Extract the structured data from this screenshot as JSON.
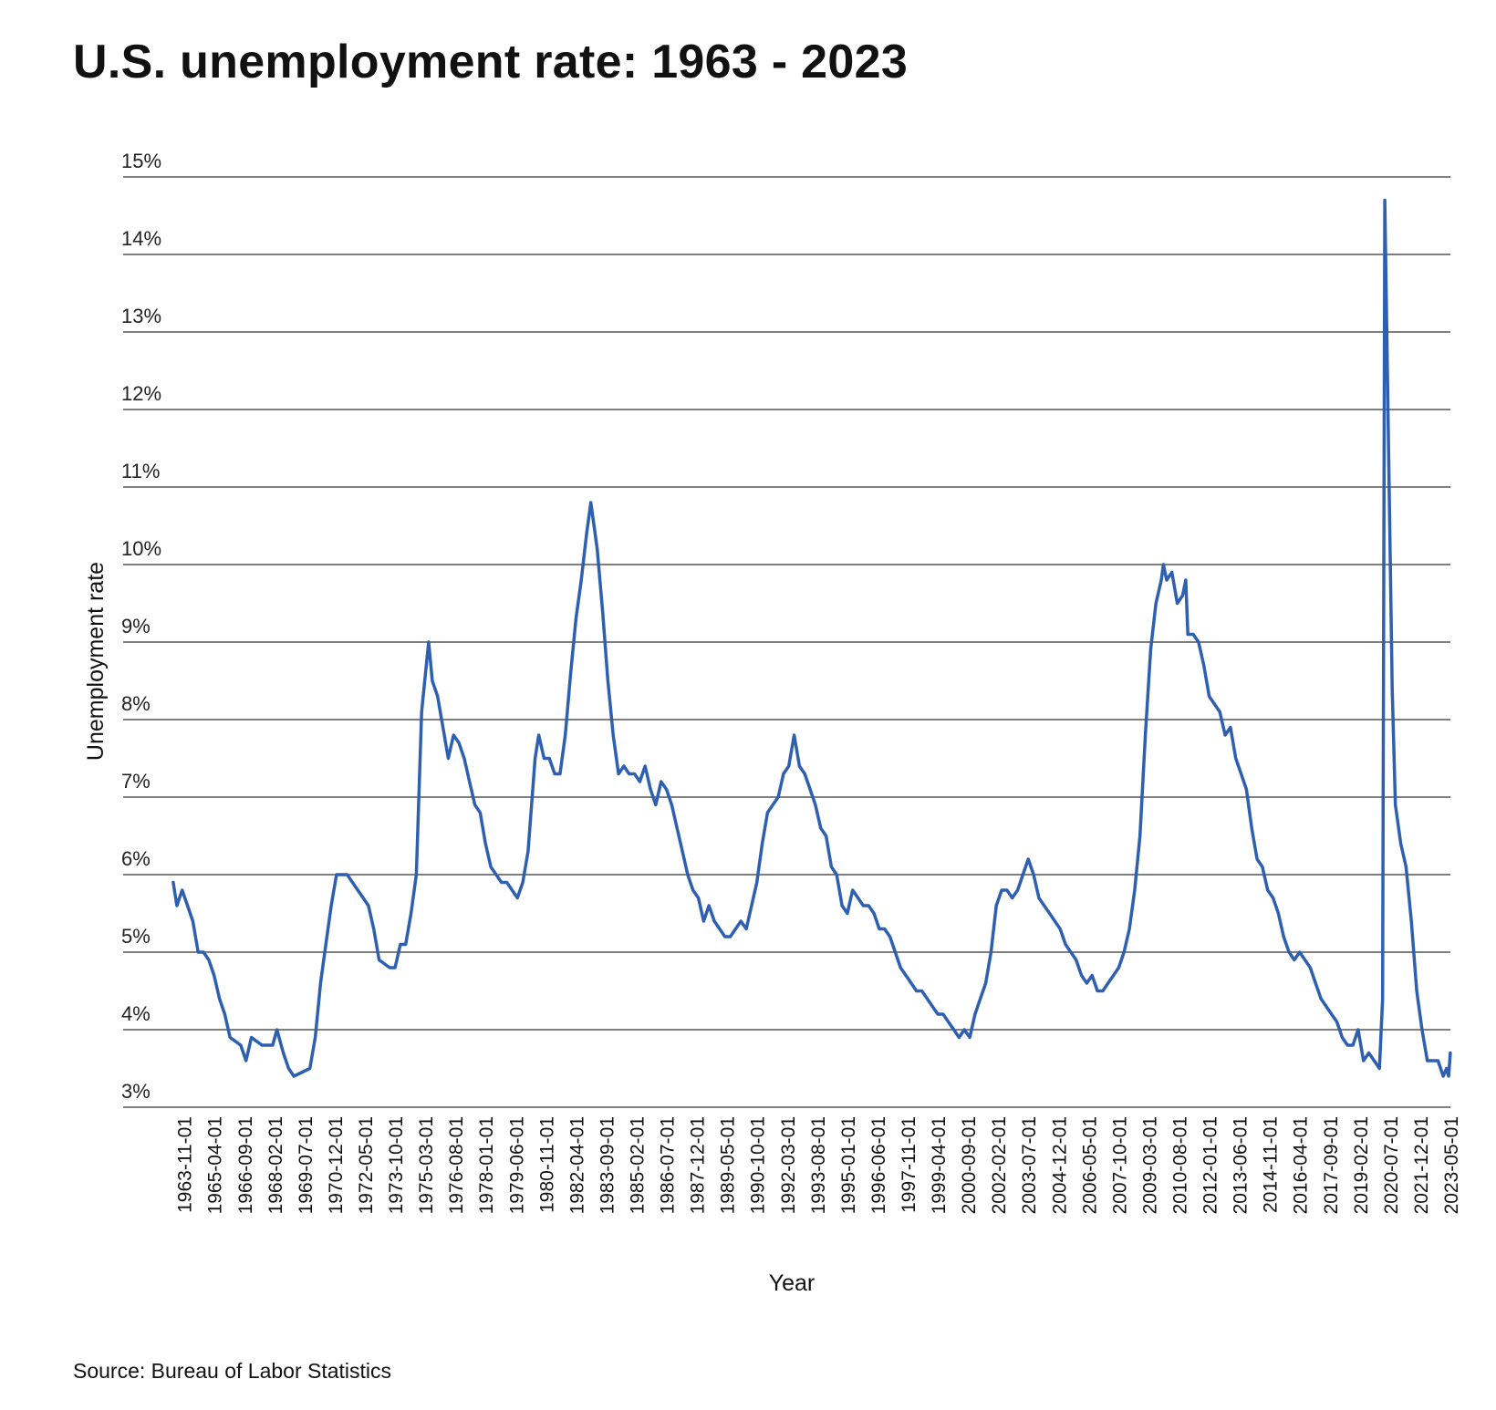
{
  "title": "U.S. unemployment rate: 1963 - 2023",
  "source": "Source: Bureau of Labor Statistics",
  "chart_data": {
    "type": "line",
    "title": "U.S. unemployment rate: 1963 - 2023",
    "xlabel": "Year",
    "ylabel": "Unemployment rate",
    "ylim": [
      3,
      15
    ],
    "xlim": [
      "1963-05-01",
      "2023-05-01"
    ],
    "grid": "horizontal",
    "line_color": "#2f5fb0",
    "y_ticks": [
      "3%",
      "4%",
      "5%",
      "6%",
      "7%",
      "8%",
      "9%",
      "10%",
      "11%",
      "12%",
      "13%",
      "14%",
      "15%"
    ],
    "x_ticks": [
      "1963-11-01",
      "1965-04-01",
      "1966-09-01",
      "1968-02-01",
      "1969-07-01",
      "1970-12-01",
      "1972-05-01",
      "1973-10-01",
      "1975-03-01",
      "1976-08-01",
      "1978-01-01",
      "1979-06-01",
      "1980-11-01",
      "1982-04-01",
      "1983-09-01",
      "1985-02-01",
      "1986-07-01",
      "1987-12-01",
      "1989-05-01",
      "1990-10-01",
      "1992-03-01",
      "1993-08-01",
      "1995-01-01",
      "1996-06-01",
      "1997-11-01",
      "1999-04-01",
      "2000-09-01",
      "2002-02-01",
      "2003-07-01",
      "2004-12-01",
      "2006-05-01",
      "2007-10-01",
      "2009-03-01",
      "2010-08-01",
      "2012-01-01",
      "2013-06-01",
      "2014-11-01",
      "2016-04-01",
      "2017-09-01",
      "2019-02-01",
      "2020-07-01",
      "2021-12-01",
      "2023-05-01"
    ],
    "series": [
      {
        "name": "Unemployment rate",
        "points": [
          [
            1963.33,
            5.9
          ],
          [
            1963.5,
            5.6
          ],
          [
            1963.75,
            5.8
          ],
          [
            1964.0,
            5.6
          ],
          [
            1964.25,
            5.4
          ],
          [
            1964.5,
            5.0
          ],
          [
            1964.75,
            5.0
          ],
          [
            1965.0,
            4.9
          ],
          [
            1965.25,
            4.7
          ],
          [
            1965.5,
            4.4
          ],
          [
            1965.75,
            4.2
          ],
          [
            1966.0,
            3.9
          ],
          [
            1966.5,
            3.8
          ],
          [
            1966.75,
            3.6
          ],
          [
            1967.0,
            3.9
          ],
          [
            1967.5,
            3.8
          ],
          [
            1968.0,
            3.8
          ],
          [
            1968.2,
            4.0
          ],
          [
            1968.5,
            3.7
          ],
          [
            1968.75,
            3.5
          ],
          [
            1969.0,
            3.4
          ],
          [
            1969.75,
            3.5
          ],
          [
            1970.0,
            3.9
          ],
          [
            1970.25,
            4.6
          ],
          [
            1970.5,
            5.1
          ],
          [
            1970.75,
            5.6
          ],
          [
            1971.0,
            6.0
          ],
          [
            1971.5,
            6.0
          ],
          [
            1971.75,
            5.9
          ],
          [
            1972.0,
            5.8
          ],
          [
            1972.25,
            5.7
          ],
          [
            1972.5,
            5.6
          ],
          [
            1972.75,
            5.3
          ],
          [
            1973.0,
            4.9
          ],
          [
            1973.5,
            4.8
          ],
          [
            1973.75,
            4.8
          ],
          [
            1974.0,
            5.1
          ],
          [
            1974.25,
            5.1
          ],
          [
            1974.5,
            5.5
          ],
          [
            1974.75,
            6.0
          ],
          [
            1975.0,
            8.1
          ],
          [
            1975.33,
            9.0
          ],
          [
            1975.5,
            8.5
          ],
          [
            1975.75,
            8.3
          ],
          [
            1976.0,
            7.9
          ],
          [
            1976.25,
            7.5
          ],
          [
            1976.5,
            7.8
          ],
          [
            1976.75,
            7.7
          ],
          [
            1977.0,
            7.5
          ],
          [
            1977.25,
            7.2
          ],
          [
            1977.5,
            6.9
          ],
          [
            1977.75,
            6.8
          ],
          [
            1978.0,
            6.4
          ],
          [
            1978.25,
            6.1
          ],
          [
            1978.5,
            6.0
          ],
          [
            1978.75,
            5.9
          ],
          [
            1979.0,
            5.9
          ],
          [
            1979.25,
            5.8
          ],
          [
            1979.5,
            5.7
          ],
          [
            1979.75,
            5.9
          ],
          [
            1980.0,
            6.3
          ],
          [
            1980.33,
            7.5
          ],
          [
            1980.5,
            7.8
          ],
          [
            1980.75,
            7.5
          ],
          [
            1981.0,
            7.5
          ],
          [
            1981.25,
            7.3
          ],
          [
            1981.5,
            7.3
          ],
          [
            1981.75,
            7.8
          ],
          [
            1982.0,
            8.6
          ],
          [
            1982.25,
            9.3
          ],
          [
            1982.5,
            9.8
          ],
          [
            1982.75,
            10.4
          ],
          [
            1982.95,
            10.8
          ],
          [
            1983.25,
            10.2
          ],
          [
            1983.5,
            9.4
          ],
          [
            1983.75,
            8.5
          ],
          [
            1984.0,
            7.8
          ],
          [
            1984.25,
            7.3
          ],
          [
            1984.5,
            7.4
          ],
          [
            1984.75,
            7.3
          ],
          [
            1985.0,
            7.3
          ],
          [
            1985.25,
            7.2
          ],
          [
            1985.5,
            7.4
          ],
          [
            1985.75,
            7.1
          ],
          [
            1986.0,
            6.9
          ],
          [
            1986.25,
            7.2
          ],
          [
            1986.5,
            7.1
          ],
          [
            1986.75,
            6.9
          ],
          [
            1987.0,
            6.6
          ],
          [
            1987.25,
            6.3
          ],
          [
            1987.5,
            6.0
          ],
          [
            1987.75,
            5.8
          ],
          [
            1988.0,
            5.7
          ],
          [
            1988.25,
            5.4
          ],
          [
            1988.5,
            5.6
          ],
          [
            1988.75,
            5.4
          ],
          [
            1989.0,
            5.3
          ],
          [
            1989.25,
            5.2
          ],
          [
            1989.5,
            5.2
          ],
          [
            1989.75,
            5.3
          ],
          [
            1990.0,
            5.4
          ],
          [
            1990.25,
            5.3
          ],
          [
            1990.5,
            5.6
          ],
          [
            1990.75,
            5.9
          ],
          [
            1991.0,
            6.4
          ],
          [
            1991.25,
            6.8
          ],
          [
            1991.5,
            6.9
          ],
          [
            1991.75,
            7.0
          ],
          [
            1992.0,
            7.3
          ],
          [
            1992.25,
            7.4
          ],
          [
            1992.5,
            7.8
          ],
          [
            1992.75,
            7.4
          ],
          [
            1993.0,
            7.3
          ],
          [
            1993.25,
            7.1
          ],
          [
            1993.5,
            6.9
          ],
          [
            1993.75,
            6.6
          ],
          [
            1994.0,
            6.5
          ],
          [
            1994.25,
            6.1
          ],
          [
            1994.5,
            6.0
          ],
          [
            1994.75,
            5.6
          ],
          [
            1995.0,
            5.5
          ],
          [
            1995.25,
            5.8
          ],
          [
            1995.5,
            5.7
          ],
          [
            1995.75,
            5.6
          ],
          [
            1996.0,
            5.6
          ],
          [
            1996.25,
            5.5
          ],
          [
            1996.5,
            5.3
          ],
          [
            1996.75,
            5.3
          ],
          [
            1997.0,
            5.2
          ],
          [
            1997.25,
            5.0
          ],
          [
            1997.5,
            4.8
          ],
          [
            1997.75,
            4.7
          ],
          [
            1998.0,
            4.6
          ],
          [
            1998.25,
            4.5
          ],
          [
            1998.5,
            4.5
          ],
          [
            1998.75,
            4.4
          ],
          [
            1999.0,
            4.3
          ],
          [
            1999.25,
            4.2
          ],
          [
            1999.5,
            4.2
          ],
          [
            1999.75,
            4.1
          ],
          [
            2000.0,
            4.0
          ],
          [
            2000.25,
            3.9
          ],
          [
            2000.5,
            4.0
          ],
          [
            2000.75,
            3.9
          ],
          [
            2001.0,
            4.2
          ],
          [
            2001.25,
            4.4
          ],
          [
            2001.5,
            4.6
          ],
          [
            2001.75,
            5.0
          ],
          [
            2002.0,
            5.6
          ],
          [
            2002.25,
            5.8
          ],
          [
            2002.5,
            5.8
          ],
          [
            2002.75,
            5.7
          ],
          [
            2003.0,
            5.8
          ],
          [
            2003.25,
            6.0
          ],
          [
            2003.5,
            6.2
          ],
          [
            2003.75,
            6.0
          ],
          [
            2004.0,
            5.7
          ],
          [
            2004.25,
            5.6
          ],
          [
            2004.5,
            5.5
          ],
          [
            2004.75,
            5.4
          ],
          [
            2005.0,
            5.3
          ],
          [
            2005.25,
            5.1
          ],
          [
            2005.5,
            5.0
          ],
          [
            2005.75,
            4.9
          ],
          [
            2006.0,
            4.7
          ],
          [
            2006.25,
            4.6
          ],
          [
            2006.5,
            4.7
          ],
          [
            2006.75,
            4.5
          ],
          [
            2007.0,
            4.5
          ],
          [
            2007.25,
            4.6
          ],
          [
            2007.5,
            4.7
          ],
          [
            2007.75,
            4.8
          ],
          [
            2008.0,
            5.0
          ],
          [
            2008.25,
            5.3
          ],
          [
            2008.5,
            5.8
          ],
          [
            2008.75,
            6.5
          ],
          [
            2009.0,
            7.8
          ],
          [
            2009.25,
            8.9
          ],
          [
            2009.5,
            9.5
          ],
          [
            2009.75,
            9.8
          ],
          [
            2009.85,
            10.0
          ],
          [
            2010.0,
            9.8
          ],
          [
            2010.25,
            9.9
          ],
          [
            2010.5,
            9.5
          ],
          [
            2010.75,
            9.6
          ],
          [
            2010.9,
            9.8
          ],
          [
            2011.0,
            9.1
          ],
          [
            2011.25,
            9.1
          ],
          [
            2011.5,
            9.0
          ],
          [
            2011.75,
            8.7
          ],
          [
            2012.0,
            8.3
          ],
          [
            2012.25,
            8.2
          ],
          [
            2012.5,
            8.1
          ],
          [
            2012.75,
            7.8
          ],
          [
            2013.0,
            7.9
          ],
          [
            2013.25,
            7.5
          ],
          [
            2013.5,
            7.3
          ],
          [
            2013.75,
            7.1
          ],
          [
            2014.0,
            6.6
          ],
          [
            2014.25,
            6.2
          ],
          [
            2014.5,
            6.1
          ],
          [
            2014.75,
            5.8
          ],
          [
            2015.0,
            5.7
          ],
          [
            2015.25,
            5.5
          ],
          [
            2015.5,
            5.2
          ],
          [
            2015.75,
            5.0
          ],
          [
            2016.0,
            4.9
          ],
          [
            2016.25,
            5.0
          ],
          [
            2016.5,
            4.9
          ],
          [
            2016.75,
            4.8
          ],
          [
            2017.0,
            4.6
          ],
          [
            2017.25,
            4.4
          ],
          [
            2017.5,
            4.3
          ],
          [
            2017.75,
            4.2
          ],
          [
            2018.0,
            4.1
          ],
          [
            2018.25,
            3.9
          ],
          [
            2018.5,
            3.8
          ],
          [
            2018.75,
            3.8
          ],
          [
            2019.0,
            4.0
          ],
          [
            2019.25,
            3.6
          ],
          [
            2019.5,
            3.7
          ],
          [
            2019.75,
            3.6
          ],
          [
            2020.0,
            3.5
          ],
          [
            2020.15,
            4.4
          ],
          [
            2020.25,
            14.7
          ],
          [
            2020.5,
            10.2
          ],
          [
            2020.6,
            8.4
          ],
          [
            2020.75,
            6.9
          ],
          [
            2021.0,
            6.4
          ],
          [
            2021.25,
            6.1
          ],
          [
            2021.5,
            5.4
          ],
          [
            2021.75,
            4.5
          ],
          [
            2022.0,
            4.0
          ],
          [
            2022.25,
            3.6
          ],
          [
            2022.5,
            3.6
          ],
          [
            2022.75,
            3.6
          ],
          [
            2023.0,
            3.4
          ],
          [
            2023.15,
            3.5
          ],
          [
            2023.25,
            3.4
          ],
          [
            2023.33,
            3.7
          ]
        ]
      }
    ]
  }
}
